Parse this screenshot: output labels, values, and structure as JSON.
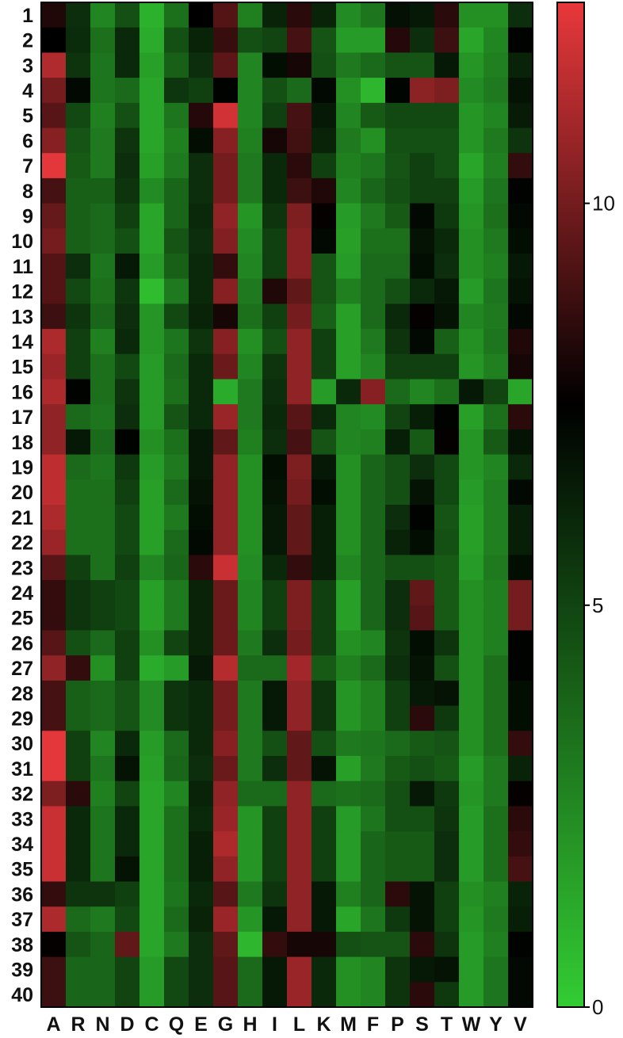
{
  "chart_data": {
    "type": "heatmap",
    "title": "",
    "xlabel": "",
    "ylabel": "",
    "rows": [
      "1",
      "2",
      "3",
      "4",
      "5",
      "6",
      "7",
      "8",
      "9",
      "10",
      "11",
      "12",
      "13",
      "14",
      "15",
      "16",
      "17",
      "18",
      "19",
      "20",
      "21",
      "22",
      "23",
      "24",
      "25",
      "26",
      "27",
      "28",
      "29",
      "30",
      "31",
      "32",
      "33",
      "34",
      "35",
      "36",
      "37",
      "38",
      "39",
      "40"
    ],
    "columns": [
      "A",
      "R",
      "N",
      "D",
      "C",
      "Q",
      "E",
      "G",
      "H",
      "I",
      "L",
      "K",
      "M",
      "F",
      "P",
      "S",
      "T",
      "W",
      "Y",
      "V"
    ],
    "colorbar": {
      "min": 0,
      "max": 12.5,
      "ticks": [
        0,
        5,
        10
      ],
      "colors": {
        "low": "#33cc33",
        "mid": "#000000",
        "high": "#e8383c"
      },
      "midpoint": 7.5
    },
    "values": [
      [
        8.2,
        5.8,
        2.6,
        4.6,
        1.0,
        3.4,
        7.5,
        9.3,
        2.8,
        6.2,
        8.4,
        6.2,
        2.4,
        3.2,
        6.9,
        6.6,
        8.4,
        2.2,
        2.2,
        5.8
      ],
      [
        7.5,
        5.9,
        3.4,
        6.0,
        1.2,
        4.6,
        6.2,
        8.7,
        4.6,
        5.0,
        9.0,
        4.4,
        1.8,
        1.8,
        8.3,
        5.8,
        8.8,
        1.4,
        2.6,
        7.4
      ],
      [
        11.3,
        5.6,
        3.2,
        6.0,
        1.6,
        4.0,
        5.8,
        9.5,
        2.6,
        7.0,
        8.0,
        4.6,
        3.0,
        3.6,
        4.4,
        4.4,
        6.6,
        2.0,
        2.8,
        6.2
      ],
      [
        10.0,
        7.2,
        3.2,
        3.6,
        1.4,
        5.5,
        5.2,
        7.4,
        2.6,
        4.6,
        3.6,
        7.2,
        2.2,
        0.8,
        7.3,
        10.5,
        10.2,
        2.4,
        3.0,
        6.8
      ],
      [
        9.4,
        4.8,
        2.8,
        4.6,
        1.4,
        3.2,
        8.3,
        12.0,
        2.6,
        5.2,
        9.0,
        6.6,
        2.6,
        4.2,
        4.8,
        4.8,
        4.8,
        2.0,
        2.6,
        6.5
      ],
      [
        10.4,
        4.4,
        3.0,
        5.6,
        1.4,
        2.8,
        7.0,
        10.4,
        2.8,
        8.0,
        8.9,
        6.2,
        3.0,
        2.2,
        4.6,
        4.6,
        4.6,
        2.0,
        3.0,
        5.6
      ],
      [
        12.4,
        4.2,
        3.0,
        5.8,
        1.6,
        3.0,
        5.8,
        10.0,
        3.0,
        6.0,
        8.4,
        5.2,
        2.8,
        3.2,
        4.4,
        5.2,
        4.6,
        1.4,
        2.8,
        8.6
      ],
      [
        9.0,
        4.0,
        4.0,
        5.6,
        2.4,
        3.8,
        5.8,
        10.0,
        3.0,
        6.0,
        8.8,
        8.2,
        2.6,
        3.8,
        4.6,
        5.2,
        5.2,
        1.8,
        3.2,
        7.4
      ],
      [
        9.7,
        4.0,
        3.6,
        5.2,
        1.4,
        3.8,
        6.0,
        10.6,
        2.0,
        5.6,
        10.2,
        7.6,
        1.8,
        3.0,
        4.2,
        7.2,
        5.4,
        2.0,
        3.4,
        7.2
      ],
      [
        10.0,
        4.0,
        3.6,
        4.6,
        1.4,
        4.4,
        5.8,
        10.3,
        2.4,
        5.2,
        10.4,
        7.2,
        1.6,
        3.4,
        3.4,
        6.8,
        6.0,
        2.2,
        3.0,
        7.0
      ],
      [
        9.3,
        5.8,
        3.2,
        6.6,
        1.8,
        4.0,
        6.0,
        8.6,
        2.6,
        5.2,
        10.4,
        4.4,
        1.8,
        3.6,
        3.6,
        7.0,
        5.8,
        2.2,
        2.8,
        6.6
      ],
      [
        9.3,
        4.8,
        3.4,
        5.5,
        0.6,
        3.0,
        6.0,
        10.4,
        3.0,
        8.2,
        9.6,
        4.4,
        2.8,
        3.6,
        4.6,
        6.0,
        6.6,
        1.8,
        3.2,
        6.8
      ],
      [
        8.8,
        5.6,
        3.8,
        5.8,
        2.0,
        4.8,
        6.2,
        8.0,
        3.4,
        5.2,
        10.0,
        4.0,
        1.6,
        3.6,
        6.0,
        7.6,
        6.8,
        2.6,
        3.0,
        7.2
      ],
      [
        11.2,
        5.2,
        2.8,
        6.0,
        2.0,
        3.2,
        5.6,
        10.4,
        2.2,
        4.6,
        10.6,
        5.2,
        1.6,
        3.0,
        5.6,
        7.2,
        4.0,
        2.2,
        3.2,
        8.2
      ],
      [
        10.8,
        5.2,
        3.4,
        4.8,
        1.8,
        3.6,
        6.0,
        9.8,
        2.6,
        5.6,
        10.6,
        5.2,
        1.6,
        2.6,
        5.2,
        5.2,
        5.2,
        2.0,
        2.8,
        8.0
      ],
      [
        11.2,
        7.4,
        3.4,
        5.6,
        1.8,
        3.4,
        6.0,
        1.2,
        3.0,
        5.8,
        10.6,
        1.8,
        6.0,
        10.4,
        3.6,
        2.6,
        3.4,
        6.6,
        5.0,
        1.4
      ],
      [
        10.6,
        3.6,
        3.2,
        5.8,
        1.8,
        4.4,
        6.0,
        10.8,
        3.0,
        6.0,
        9.4,
        6.0,
        2.6,
        2.4,
        5.0,
        6.4,
        7.4,
        1.6,
        3.4,
        8.4
      ],
      [
        10.6,
        6.6,
        3.6,
        7.4,
        2.2,
        3.4,
        6.6,
        9.6,
        2.8,
        5.8,
        9.0,
        4.4,
        2.6,
        2.8,
        6.4,
        4.2,
        7.6,
        2.0,
        4.2,
        6.8
      ],
      [
        11.6,
        3.6,
        3.2,
        5.4,
        1.8,
        3.0,
        6.6,
        10.6,
        2.2,
        7.0,
        10.2,
        6.6,
        2.2,
        3.8,
        4.6,
        5.8,
        4.8,
        2.0,
        2.6,
        6.0
      ],
      [
        11.6,
        3.4,
        3.4,
        5.2,
        1.6,
        3.6,
        6.8,
        10.6,
        2.2,
        6.8,
        10.0,
        7.0,
        2.2,
        3.8,
        4.6,
        6.8,
        4.8,
        1.8,
        2.8,
        7.2
      ],
      [
        11.2,
        3.4,
        3.4,
        4.8,
        1.6,
        3.0,
        7.0,
        10.6,
        2.2,
        6.6,
        9.6,
        6.4,
        2.2,
        3.8,
        5.8,
        7.4,
        4.4,
        1.6,
        2.8,
        6.4
      ],
      [
        10.8,
        3.4,
        3.4,
        4.8,
        1.6,
        3.6,
        7.2,
        10.6,
        2.2,
        6.6,
        9.6,
        6.4,
        2.2,
        3.8,
        6.2,
        7.0,
        4.6,
        1.6,
        2.8,
        6.4
      ],
      [
        9.4,
        5.2,
        3.4,
        5.2,
        2.6,
        3.8,
        8.4,
        11.8,
        2.4,
        6.0,
        8.6,
        6.4,
        2.6,
        3.8,
        4.6,
        4.6,
        4.2,
        1.8,
        3.0,
        7.0
      ],
      [
        8.6,
        5.6,
        5.2,
        4.8,
        1.6,
        3.0,
        6.2,
        9.8,
        2.6,
        5.2,
        10.2,
        5.2,
        1.6,
        3.8,
        5.8,
        9.6,
        4.2,
        2.2,
        2.8,
        10.0
      ],
      [
        8.6,
        5.6,
        5.2,
        4.8,
        1.6,
        3.0,
        6.2,
        9.8,
        2.6,
        5.2,
        10.2,
        5.2,
        1.6,
        3.8,
        5.8,
        9.4,
        4.2,
        2.2,
        2.8,
        10.0
      ],
      [
        9.4,
        4.6,
        3.6,
        5.2,
        2.2,
        5.0,
        6.2,
        9.8,
        3.0,
        5.8,
        10.0,
        5.2,
        2.2,
        2.6,
        5.6,
        7.0,
        5.6,
        2.2,
        2.8,
        7.4
      ],
      [
        10.6,
        8.6,
        2.2,
        5.2,
        1.2,
        1.8,
        6.6,
        11.4,
        3.6,
        3.6,
        11.0,
        4.2,
        2.8,
        3.6,
        5.8,
        6.8,
        4.6,
        2.2,
        3.4,
        7.4
      ],
      [
        9.0,
        4.0,
        3.6,
        4.4,
        2.4,
        5.6,
        6.0,
        10.0,
        3.0,
        6.6,
        10.6,
        5.6,
        2.0,
        2.8,
        5.2,
        6.6,
        6.8,
        2.2,
        3.4,
        7.0
      ],
      [
        9.0,
        4.0,
        3.6,
        4.4,
        2.4,
        5.6,
        6.0,
        10.0,
        3.0,
        6.6,
        10.6,
        5.6,
        2.0,
        2.8,
        5.2,
        8.4,
        5.4,
        2.2,
        3.4,
        7.0
      ],
      [
        12.4,
        5.2,
        2.6,
        6.0,
        1.8,
        3.6,
        6.0,
        10.4,
        3.0,
        4.6,
        9.6,
        4.6,
        3.0,
        3.2,
        3.6,
        4.2,
        4.4,
        2.2,
        3.4,
        8.6
      ],
      [
        12.4,
        5.2,
        3.2,
        6.8,
        1.6,
        3.8,
        5.8,
        9.8,
        3.0,
        5.8,
        9.6,
        6.8,
        1.6,
        3.0,
        4.2,
        4.6,
        4.2,
        1.8,
        3.0,
        6.2
      ],
      [
        10.2,
        8.4,
        2.8,
        5.0,
        1.4,
        2.6,
        6.2,
        10.6,
        3.6,
        3.6,
        10.6,
        3.6,
        3.4,
        3.6,
        4.6,
        6.6,
        5.4,
        2.0,
        3.0,
        7.6
      ],
      [
        11.8,
        6.0,
        3.2,
        6.0,
        1.4,
        3.4,
        6.0,
        10.8,
        2.0,
        5.2,
        10.6,
        5.2,
        1.8,
        3.2,
        4.6,
        4.6,
        5.6,
        1.8,
        3.4,
        8.4
      ],
      [
        11.8,
        6.0,
        3.2,
        6.0,
        1.4,
        3.4,
        6.4,
        11.2,
        2.0,
        5.2,
        10.6,
        5.2,
        1.8,
        3.8,
        4.2,
        4.2,
        5.8,
        1.8,
        3.4,
        8.6
      ],
      [
        11.8,
        6.0,
        3.2,
        6.8,
        1.4,
        3.4,
        6.4,
        10.6,
        2.0,
        5.2,
        10.6,
        5.2,
        1.8,
        3.8,
        4.2,
        4.2,
        5.8,
        1.8,
        3.4,
        9.0
      ],
      [
        8.6,
        5.6,
        5.6,
        5.2,
        1.4,
        3.2,
        6.0,
        9.4,
        3.0,
        5.6,
        10.6,
        6.6,
        2.8,
        3.8,
        8.4,
        6.8,
        5.2,
        2.2,
        2.8,
        6.2
      ],
      [
        11.2,
        3.6,
        3.0,
        4.8,
        1.4,
        3.6,
        6.2,
        10.8,
        2.0,
        6.6,
        10.6,
        6.6,
        1.4,
        3.2,
        5.4,
        6.8,
        5.2,
        2.0,
        3.0,
        6.4
      ],
      [
        7.6,
        4.4,
        3.8,
        9.6,
        1.4,
        3.0,
        5.8,
        9.6,
        0.8,
        8.6,
        8.0,
        8.0,
        4.6,
        4.4,
        4.4,
        8.4,
        5.6,
        1.8,
        2.8,
        7.4
      ],
      [
        8.8,
        3.8,
        3.8,
        5.0,
        1.8,
        4.8,
        5.8,
        9.4,
        3.6,
        6.6,
        10.8,
        6.0,
        2.2,
        2.6,
        5.6,
        6.6,
        6.8,
        1.8,
        3.2,
        7.2
      ],
      [
        8.8,
        3.8,
        3.8,
        5.0,
        1.8,
        4.8,
        5.8,
        9.4,
        3.6,
        6.6,
        10.8,
        6.0,
        2.2,
        2.6,
        5.6,
        8.4,
        5.4,
        1.8,
        3.2,
        7.2
      ]
    ]
  }
}
